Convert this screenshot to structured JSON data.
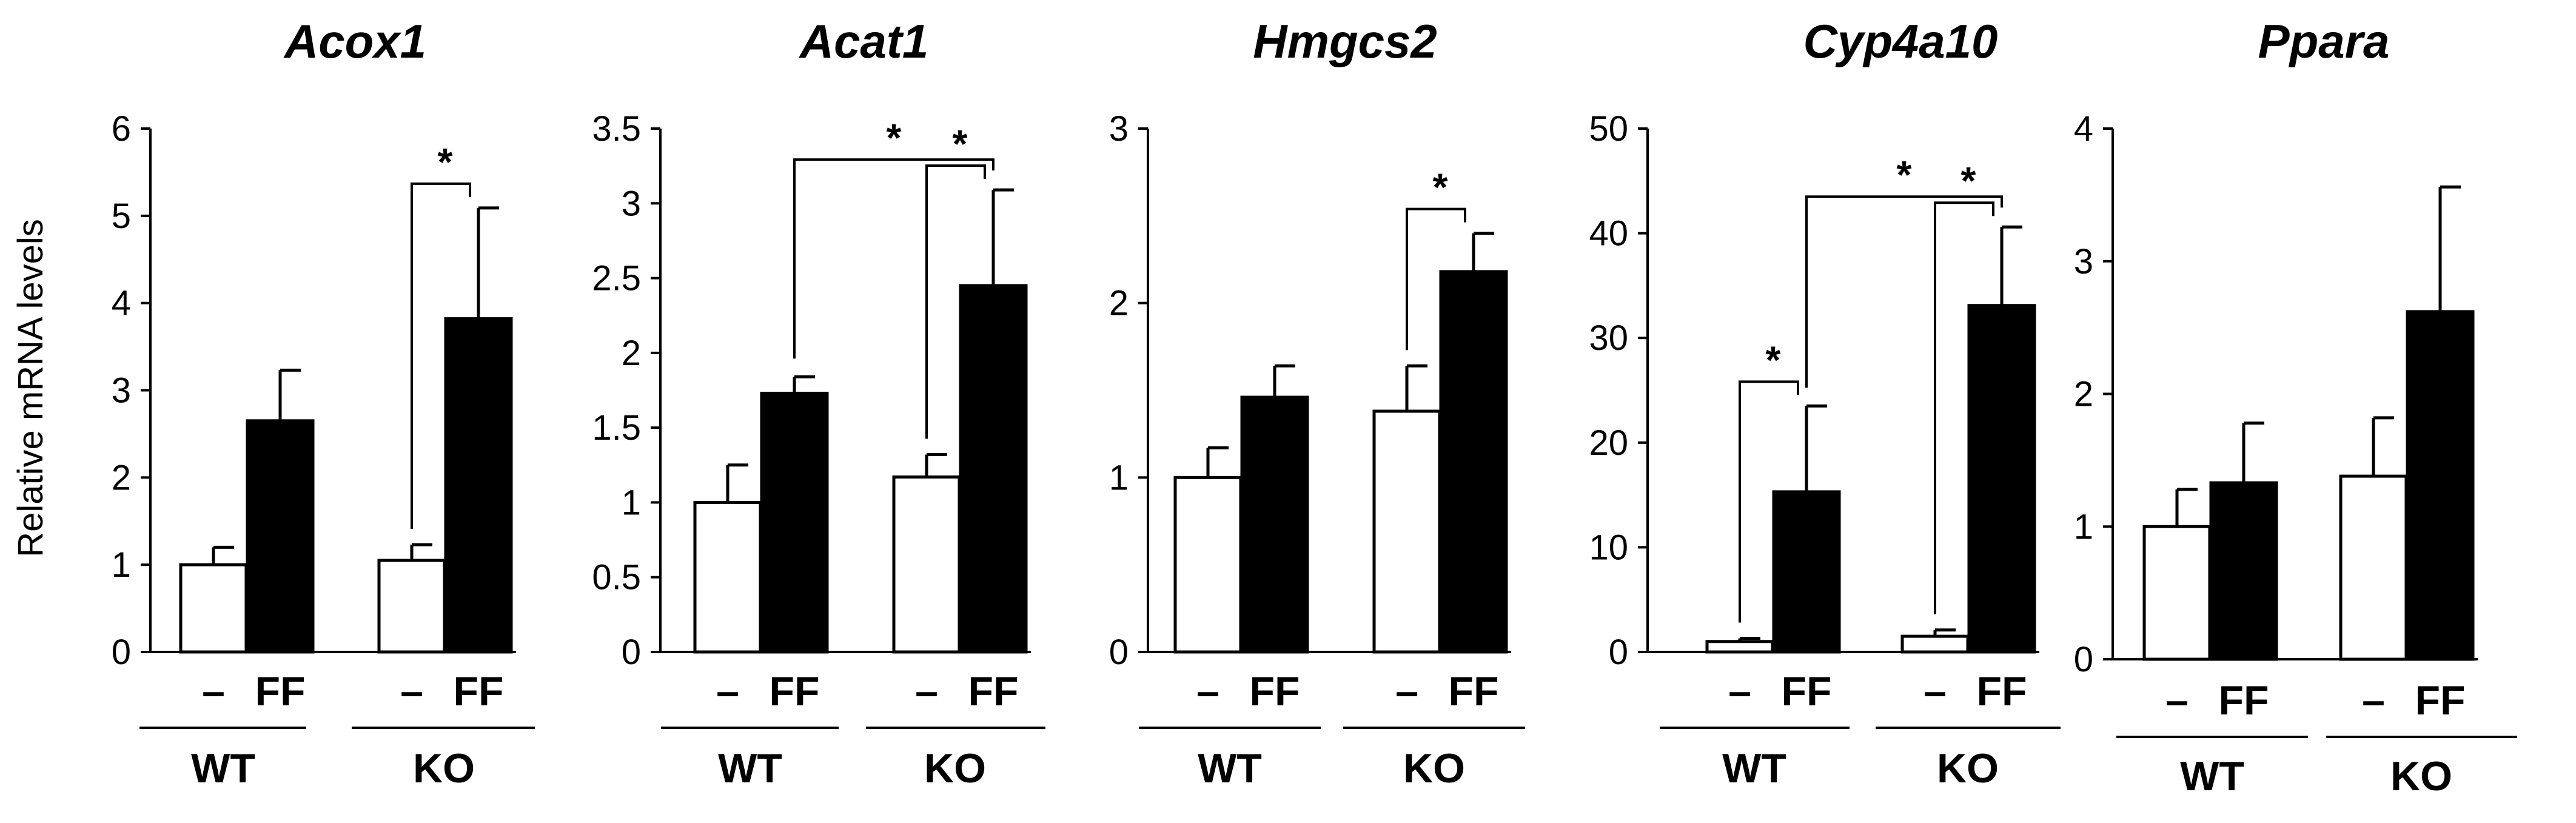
{
  "chart_data": {
    "type": "bar",
    "ylabel": "Relative mRNA levels",
    "groups": [
      "WT",
      "KO"
    ],
    "treatments": [
      "–",
      "FF"
    ],
    "bar_colors": [
      "#ffffff",
      "#000000"
    ],
    "significance_marker": "*",
    "panels": [
      {
        "title": "Acox1",
        "ylim": [
          0,
          6
        ],
        "yticks": [
          0,
          1,
          2,
          3,
          4,
          5,
          6
        ],
        "ytick_labels": [
          "0",
          "1",
          "2",
          "3",
          "4",
          "5",
          "6"
        ],
        "series": [
          {
            "name": "–",
            "values": [
              1.0,
              1.05
            ],
            "errors": [
              0.2,
              0.18
            ]
          },
          {
            "name": "FF",
            "values": [
              2.65,
              3.82
            ],
            "errors": [
              0.58,
              1.27
            ]
          }
        ],
        "significance": [
          {
            "from": [
              1,
              0
            ],
            "to": [
              1,
              1
            ],
            "label": "*"
          }
        ]
      },
      {
        "title": "Acat1",
        "ylim": [
          0,
          3.5
        ],
        "yticks": [
          0,
          0.5,
          1,
          1.5,
          2,
          2.5,
          3,
          3.5
        ],
        "ytick_labels": [
          "0",
          "0.5",
          "1",
          "1.5",
          "2",
          "2.5",
          "3",
          "3.5"
        ],
        "series": [
          {
            "name": "–",
            "values": [
              1.0,
              1.17
            ],
            "errors": [
              0.25,
              0.15
            ]
          },
          {
            "name": "FF",
            "values": [
              1.73,
              2.45
            ],
            "errors": [
              0.11,
              0.64
            ]
          }
        ],
        "significance": [
          {
            "from": [
              1,
              0
            ],
            "to": [
              1,
              1
            ],
            "label": "*"
          },
          {
            "from": [
              0,
              1
            ],
            "to": [
              1,
              1
            ],
            "label": "*"
          }
        ]
      },
      {
        "title": "Hmgcs2",
        "ylim": [
          0,
          3
        ],
        "yticks": [
          0,
          1,
          2,
          3
        ],
        "ytick_labels": [
          "0",
          "1",
          "2",
          "3"
        ],
        "series": [
          {
            "name": "–",
            "values": [
              1.0,
              1.38
            ],
            "errors": [
              0.17,
              0.26
            ]
          },
          {
            "name": "FF",
            "values": [
              1.46,
              2.18
            ],
            "errors": [
              0.18,
              0.22
            ]
          }
        ],
        "significance": [
          {
            "from": [
              1,
              0
            ],
            "to": [
              1,
              1
            ],
            "label": "*"
          }
        ]
      },
      {
        "title": "Cyp4a10",
        "ylim": [
          0,
          50
        ],
        "yticks": [
          0,
          10,
          20,
          30,
          40,
          50
        ],
        "ytick_labels": [
          "0",
          "10",
          "20",
          "30",
          "40",
          "50"
        ],
        "series": [
          {
            "name": "–",
            "values": [
              1.0,
              1.5
            ],
            "errors": [
              0.3,
              0.6
            ]
          },
          {
            "name": "FF",
            "values": [
              15.3,
              33.1
            ],
            "errors": [
              8.2,
              7.5
            ]
          }
        ],
        "significance": [
          {
            "from": [
              0,
              0
            ],
            "to": [
              0,
              1
            ],
            "label": "*"
          },
          {
            "from": [
              1,
              0
            ],
            "to": [
              1,
              1
            ],
            "label": "*"
          },
          {
            "from": [
              0,
              1
            ],
            "to": [
              1,
              1
            ],
            "label": "*"
          }
        ]
      },
      {
        "title": "Ppara",
        "ylim": [
          0,
          4
        ],
        "yticks": [
          0,
          1,
          2,
          3,
          4
        ],
        "ytick_labels": [
          "0",
          "1",
          "2",
          "3",
          "4"
        ],
        "series": [
          {
            "name": "–",
            "values": [
              1.0,
              1.38
            ],
            "errors": [
              0.28,
              0.44
            ]
          },
          {
            "name": "FF",
            "values": [
              1.33,
              2.62
            ],
            "errors": [
              0.45,
              0.94
            ]
          }
        ],
        "significance": []
      }
    ]
  }
}
